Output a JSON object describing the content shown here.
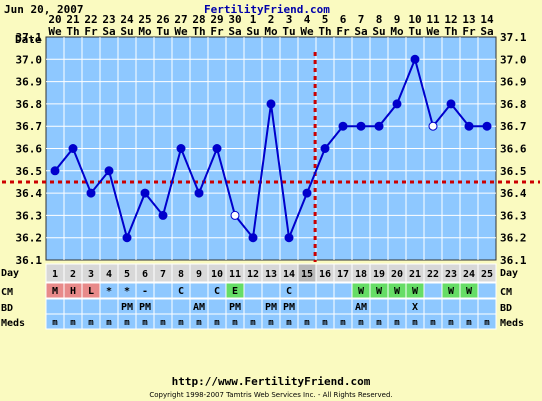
{
  "header": {
    "date": "Jun 20, 2007",
    "site": "FertilityFriend.com"
  },
  "footer": {
    "url": "http://www.FertilityFriend.com",
    "copyright": "Copyright 1998-2007 Tamtris Web Services Inc. - All Rights Reserved."
  },
  "row_labels": {
    "date": "Date",
    "day": "Day",
    "cm": "CM",
    "bd": "BD",
    "meds": "Meds"
  },
  "colors": {
    "background": "#fafac0",
    "plot": "#8ec8ff",
    "line": "#0000cc",
    "coverline": "#cc0000",
    "row_blue": "#8ec8ff",
    "cm_red": "#e88a8a",
    "cm_green": "#66dd66",
    "day_gray": "#d8d8d8"
  },
  "chart_data": {
    "type": "line",
    "title": "",
    "xlabel": "",
    "ylabel": "",
    "ylim": [
      36.1,
      37.1
    ],
    "yticks": [
      "36.1",
      "36.2",
      "36.3",
      "36.4",
      "36.5",
      "36.6",
      "36.7",
      "36.8",
      "36.9",
      "37.0",
      "37.1"
    ],
    "dates": [
      "20",
      "21",
      "22",
      "23",
      "24",
      "25",
      "26",
      "27",
      "28",
      "29",
      "30",
      "1",
      "2",
      "3",
      "4",
      "5",
      "6",
      "7",
      "8",
      "9",
      "10",
      "11",
      "12",
      "13",
      "14"
    ],
    "weekdays": [
      "We",
      "Th",
      "Fr",
      "Sa",
      "Su",
      "Mo",
      "Tu",
      "We",
      "Th",
      "Fr",
      "Sa",
      "Su",
      "Mo",
      "Tu",
      "We",
      "Th",
      "Fr",
      "Sa",
      "Su",
      "Mo",
      "Tu",
      "We",
      "Th",
      "Fr",
      "Sa"
    ],
    "cycle_days": [
      "1",
      "2",
      "3",
      "4",
      "5",
      "6",
      "7",
      "8",
      "9",
      "10",
      "11",
      "12",
      "13",
      "14",
      "15",
      "16",
      "17",
      "18",
      "19",
      "20",
      "21",
      "22",
      "23",
      "24",
      "25"
    ],
    "temperatures": [
      36.5,
      36.6,
      36.4,
      36.5,
      36.2,
      36.4,
      36.3,
      36.6,
      36.4,
      36.6,
      36.3,
      36.2,
      36.8,
      36.2,
      36.4,
      36.6,
      36.7,
      36.7,
      36.7,
      36.8,
      37.0,
      36.7,
      36.8,
      36.7,
      36.7
    ],
    "open_markers": [
      10,
      21
    ],
    "coverline": 36.45,
    "ovulation_day": "15",
    "cm": [
      "M",
      "H",
      "L",
      "*",
      "*",
      "-",
      "",
      "C",
      "",
      "C",
      "E",
      "",
      "",
      "C",
      "",
      "",
      "",
      "W",
      "W",
      "W",
      "W",
      "",
      "W",
      "W",
      ""
    ],
    "cm_colors": [
      "red",
      "red",
      "red",
      "",
      "",
      "",
      "",
      "",
      "",
      "",
      "green",
      "",
      "",
      "",
      "",
      "",
      "",
      "green",
      "green",
      "green",
      "green",
      "",
      "green",
      "green",
      ""
    ],
    "bd": [
      "",
      "",
      "",
      "",
      "PM",
      "PM",
      "",
      "",
      "AM",
      "",
      "PM",
      "",
      "PM",
      "PM",
      "",
      "",
      "",
      "AM",
      "",
      "",
      "X",
      "",
      "",
      "",
      ""
    ],
    "meds": [
      "m",
      "m",
      "m",
      "m",
      "m",
      "m",
      "m",
      "m",
      "m",
      "m",
      "m",
      "m",
      "m",
      "m",
      "m",
      "m",
      "m",
      "m",
      "m",
      "m",
      "m",
      "m",
      "m",
      "m",
      "m"
    ]
  }
}
